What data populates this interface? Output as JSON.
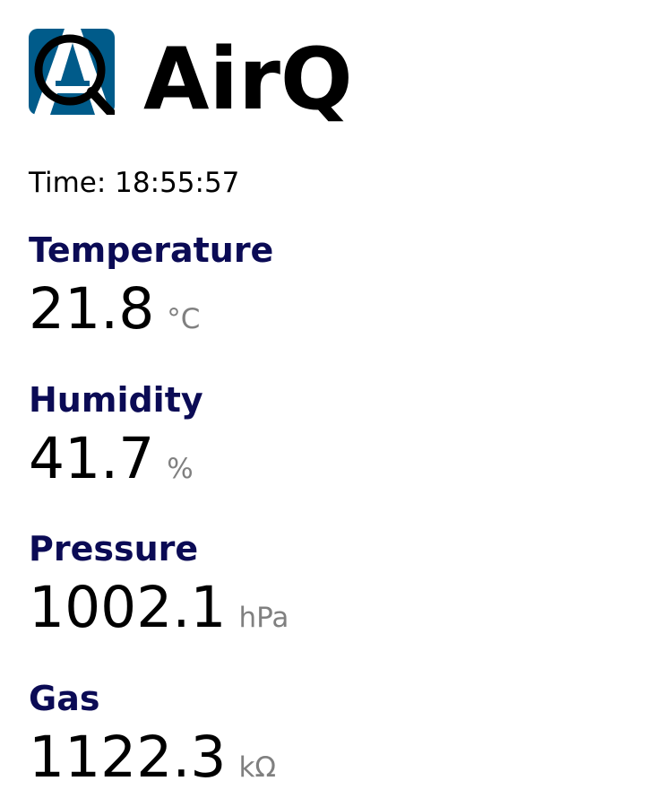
{
  "app": {
    "title": "AirQ",
    "logo_icon": "airq-logo-icon",
    "logo_color": "#005b8a"
  },
  "time": {
    "label": "Time:",
    "value": "18:55:57"
  },
  "readings": [
    {
      "label": "Temperature",
      "value": "21.8",
      "unit": "°C"
    },
    {
      "label": "Humidity",
      "value": "41.7",
      "unit": "%"
    },
    {
      "label": "Pressure",
      "value": "1002.1",
      "unit": "hPa"
    },
    {
      "label": "Gas",
      "value": "1122.3",
      "unit": "kΩ"
    }
  ],
  "colors": {
    "label": "#0b0b55",
    "value": "#000000",
    "unit": "#808080"
  }
}
